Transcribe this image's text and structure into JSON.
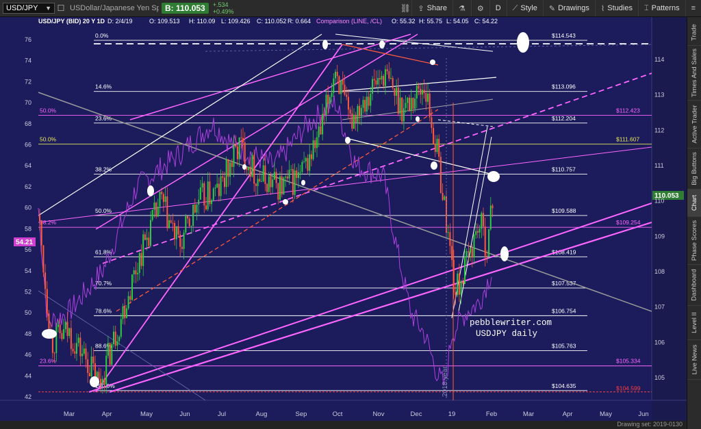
{
  "toolbar": {
    "symbol": "USD/JPY",
    "description": "USDollar/Japanese Yen Spot",
    "bid": "B: 110.053",
    "change_abs": "+.534",
    "change_pct": "+0.49%",
    "share": "Share",
    "period": "D",
    "style": "Style",
    "drawings": "Drawings",
    "studies": "Studies",
    "patterns": "Patterns"
  },
  "legend": {
    "title": "USD/JPY (BID) 20 Y 1D",
    "date": "D: 2/4/19",
    "open": "O: 109.513",
    "high": "H: 110.09",
    "low": "L: 109.426",
    "close": "C: 110.052",
    "r": "R: 0.664",
    "comparison": "Comparison (LINE, /CL)",
    "cmp_open": "O: 55.32",
    "cmp_high": "H: 55.75",
    "cmp_low": "L: 54.05",
    "cmp_close": "C: 54.22"
  },
  "left_axis": [
    "76",
    "74",
    "72",
    "70",
    "68",
    "66",
    "64",
    "62",
    "60",
    "58",
    "56",
    "54",
    "52",
    "50",
    "48",
    "46",
    "44",
    "42"
  ],
  "right_axis": [
    "114",
    "113",
    "112",
    "111",
    "110",
    "109",
    "108",
    "107",
    "106",
    "105"
  ],
  "x_axis": [
    "Mar",
    "Apr",
    "May",
    "Jun",
    "Jul",
    "Aug",
    "Sep",
    "Oct",
    "Nov",
    "Dec",
    "19",
    "Feb",
    "Mar",
    "Apr",
    "May",
    "Jun"
  ],
  "fib_white": [
    {
      "pct": "0.0%",
      "price": "$114.543"
    },
    {
      "pct": "14.6%",
      "price": "$113.096"
    },
    {
      "pct": "23.6%",
      "price": "$112.204"
    },
    {
      "pct": "38.2%",
      "price": "$110.757"
    },
    {
      "pct": "50.0%",
      "price": "$109.588"
    },
    {
      "pct": "61.8%",
      "price": "$108.419"
    },
    {
      "pct": "70.7%",
      "price": "$107.537"
    },
    {
      "pct": "78.6%",
      "price": "$106.754"
    },
    {
      "pct": "88.6%",
      "price": "$105.763"
    },
    {
      "pct": "100.0%",
      "price": "$104.635"
    }
  ],
  "fib_magenta": [
    {
      "pct": "50.0%",
      "price": "$112.423"
    },
    {
      "pct": "50.0%",
      "price": "$111.607"
    },
    {
      "pct": "38.2%",
      "price": "$109.254"
    },
    {
      "pct": "23.6%",
      "price": "$105.334"
    }
  ],
  "red_level": "$104.599",
  "current_price_tag": "110.053",
  "comparison_tag": "54.21",
  "watermark": [
    "pebblewriter.com",
    "USDJPY daily"
  ],
  "year_label": "2018 year",
  "drawing_set": "Drawing set: 2019-0130",
  "sidebar": [
    "Trade",
    "Times And Sales",
    "Active Trader",
    "Big Buttons",
    "Chart",
    "Phase Scores",
    "Dashboard",
    "Level II",
    "Live News"
  ],
  "colors": {
    "chart_bg": "#1c1c5c",
    "fib_white": "#ffffff",
    "fib_magenta": "#ff66ff",
    "fib_yellow": "#e8e85a",
    "comparison_line": "#b040e0",
    "up_candle": "#2ecc40",
    "down_candle": "#ff5a3c",
    "price_tag": "#2e7d32"
  }
}
